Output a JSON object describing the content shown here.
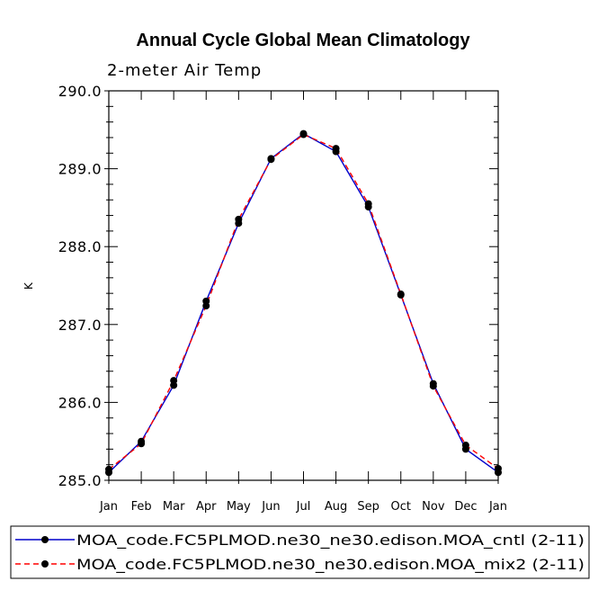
{
  "chart_data": {
    "type": "line",
    "title": "Annual Cycle Global Mean Climatology",
    "subtitle": "2-meter Air Temp",
    "xlabel": "",
    "ylabel": "K",
    "categories": [
      "Jan",
      "Feb",
      "Mar",
      "Apr",
      "May",
      "Jun",
      "Jul",
      "Aug",
      "Sep",
      "Oct",
      "Nov",
      "Dec",
      "Jan"
    ],
    "ylim": [
      285.0,
      290.0
    ],
    "yticks": [
      285.0,
      286.0,
      287.0,
      288.0,
      289.0,
      290.0
    ],
    "ytick_labels": [
      "285.0",
      "286.0",
      "287.0",
      "288.0",
      "289.0",
      "290.0"
    ],
    "series": [
      {
        "name": "MOA_code.FC5PLMOD.ne30_ne30.edison.MOA_cntl (2-11)",
        "color": "#0000cc",
        "dash": "solid",
        "values": [
          285.1,
          285.5,
          286.22,
          287.3,
          288.3,
          289.13,
          289.45,
          289.22,
          288.51,
          287.38,
          286.24,
          285.4,
          285.1
        ]
      },
      {
        "name": "MOA_code.FC5PLMOD.ne30_ne30.edison.MOA_mix2 (2-11)",
        "color": "#ff0000",
        "dash": "dashed",
        "values": [
          285.14,
          285.47,
          286.28,
          287.24,
          288.35,
          289.12,
          289.44,
          289.26,
          288.55,
          287.39,
          286.21,
          285.45,
          285.15
        ]
      }
    ],
    "legend_location": "bottom"
  }
}
